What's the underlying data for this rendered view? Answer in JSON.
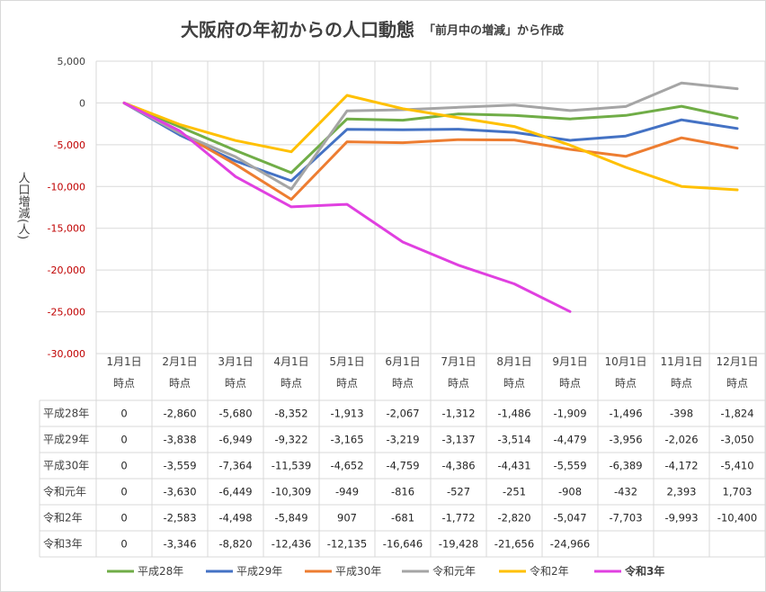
{
  "chart_data": {
    "type": "line",
    "title": "大阪府の年初からの人口動態",
    "subtitle": "「前月中の増減」から作成",
    "ylabel": "人口増減(人)",
    "ylim": [
      -30000,
      5000
    ],
    "yticks": [
      5000,
      0,
      -5000,
      -10000,
      -15000,
      -20000,
      -25000,
      -30000
    ],
    "ytick_labels": [
      "5,000",
      "0",
      "-5,000",
      "-10,000",
      "-15,000",
      "-20,000",
      "-25,000",
      "-30,000"
    ],
    "negative_tick_color": "#c00000",
    "grid": true,
    "legend_position": "bottom",
    "categories": [
      [
        "1月1日",
        "時点"
      ],
      [
        "2月1日",
        "時点"
      ],
      [
        "3月1日",
        "時点"
      ],
      [
        "4月1日",
        "時点"
      ],
      [
        "5月1日",
        "時点"
      ],
      [
        "6月1日",
        "時点"
      ],
      [
        "7月1日",
        "時点"
      ],
      [
        "8月1日",
        "時点"
      ],
      [
        "9月1日",
        "時点"
      ],
      [
        "10月1日",
        "時点"
      ],
      [
        "11月1日",
        "時点"
      ],
      [
        "12月1日",
        "時点"
      ]
    ],
    "series": [
      {
        "name": "平成28年",
        "color": "#70ad47",
        "values": [
          0,
          -2860,
          -5680,
          -8352,
          -1913,
          -2067,
          -1312,
          -1486,
          -1909,
          -1496,
          -398,
          -1824
        ],
        "labels": [
          "0",
          "-2,860",
          "-5,680",
          "-8,352",
          "-1,913",
          "-2,067",
          "-1,312",
          "-1,486",
          "-1,909",
          "-1,496",
          "-398",
          "-1,824"
        ]
      },
      {
        "name": "平成29年",
        "color": "#4472c4",
        "values": [
          0,
          -3838,
          -6949,
          -9322,
          -3165,
          -3219,
          -3137,
          -3514,
          -4479,
          -3956,
          -2026,
          -3050
        ],
        "labels": [
          "0",
          "-3,838",
          "-6,949",
          "-9,322",
          "-3,165",
          "-3,219",
          "-3,137",
          "-3,514",
          "-4,479",
          "-3,956",
          "-2,026",
          "-3,050"
        ]
      },
      {
        "name": "平成30年",
        "color": "#ed7d31",
        "values": [
          0,
          -3559,
          -7364,
          -11539,
          -4652,
          -4759,
          -4386,
          -4431,
          -5559,
          -6389,
          -4172,
          -5410
        ],
        "labels": [
          "0",
          "-3,559",
          "-7,364",
          "-11,539",
          "-4,652",
          "-4,759",
          "-4,386",
          "-4,431",
          "-5,559",
          "-6,389",
          "-4,172",
          "-5,410"
        ]
      },
      {
        "name": "令和元年",
        "color": "#a5a5a5",
        "values": [
          0,
          -3630,
          -6449,
          -10309,
          -949,
          -816,
          -527,
          -251,
          -908,
          -432,
          2393,
          1703
        ],
        "labels": [
          "0",
          "-3,630",
          "-6,449",
          "-10,309",
          "-949",
          "-816",
          "-527",
          "-251",
          "-908",
          "-432",
          "2,393",
          "1,703"
        ]
      },
      {
        "name": "令和2年",
        "color": "#ffc000",
        "values": [
          0,
          -2583,
          -4498,
          -5849,
          907,
          -681,
          -1772,
          -2820,
          -5047,
          -7703,
          -9993,
          -10400
        ],
        "labels": [
          "0",
          "-2,583",
          "-4,498",
          "-5,849",
          "907",
          "-681",
          "-1,772",
          "-2,820",
          "-5,047",
          "-7,703",
          "-9,993",
          "-10,400"
        ]
      },
      {
        "name": "令和3年",
        "color": "#e040e0",
        "bold": true,
        "values": [
          0,
          -3346,
          -8820,
          -12436,
          -12135,
          -16646,
          -19428,
          -21656,
          -24966,
          null,
          null,
          null
        ],
        "labels": [
          "0",
          "-3,346",
          "-8,820",
          "-12,436",
          "-12,135",
          "-16,646",
          "-19,428",
          "-21,656",
          "-24,966",
          "",
          "",
          ""
        ]
      }
    ]
  }
}
